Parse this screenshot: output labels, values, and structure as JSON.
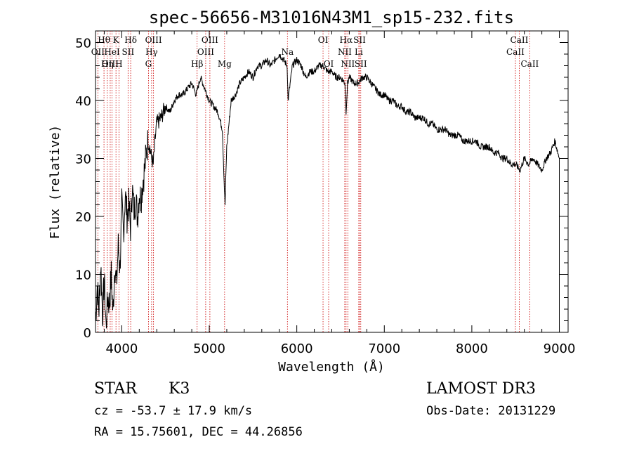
{
  "chart_data": {
    "type": "line",
    "title": "spec-56656-M31016N43M1_sp15-232.fits",
    "xlabel": "Wavelength (Å)",
    "ylabel": "Flux (relative)",
    "xlim": [
      3700,
      9100
    ],
    "ylim": [
      0,
      52
    ],
    "xticks": [
      4000,
      5000,
      6000,
      7000,
      8000,
      9000
    ],
    "yticks": [
      0,
      10,
      20,
      30,
      40,
      50
    ],
    "grid": false,
    "series": [
      {
        "x": [
          3700,
          3720,
          3740,
          3760,
          3780,
          3800,
          3820,
          3840,
          3860,
          3880,
          3900,
          3920,
          3940,
          3960,
          3980,
          4000,
          4020,
          4040,
          4060,
          4080,
          4100,
          4120,
          4140,
          4160,
          4180,
          4200,
          4220,
          4240,
          4260,
          4280,
          4300,
          4320,
          4340,
          4360,
          4380,
          4400,
          4450,
          4500,
          4550,
          4600,
          4650,
          4700,
          4750,
          4800,
          4850,
          4900,
          4950,
          5000,
          5050,
          5100,
          5150,
          5170,
          5180,
          5200,
          5250,
          5300,
          5350,
          5400,
          5450,
          5500,
          5550,
          5600,
          5650,
          5700,
          5750,
          5800,
          5850,
          5890,
          5900,
          5950,
          6000,
          6050,
          6100,
          6150,
          6200,
          6250,
          6300,
          6350,
          6400,
          6450,
          6500,
          6550,
          6563,
          6580,
          6600,
          6650,
          6700,
          6750,
          6800,
          6850,
          6900,
          6950,
          7000,
          7050,
          7100,
          7150,
          7200,
          7250,
          7300,
          7350,
          7400,
          7450,
          7500,
          7550,
          7600,
          7650,
          7700,
          7750,
          7800,
          7850,
          7900,
          7950,
          8000,
          8050,
          8100,
          8150,
          8200,
          8250,
          8300,
          8350,
          8400,
          8450,
          8500,
          8550,
          8600,
          8650,
          8700,
          8750,
          8800,
          8850,
          8900,
          8950,
          9000
        ],
        "y": [
          2,
          8,
          4,
          12,
          3,
          9,
          1,
          6,
          5,
          10,
          3,
          12,
          8,
          15,
          11,
          22,
          17,
          24,
          20,
          22,
          18,
          25,
          21,
          23,
          20,
          24,
          23,
          26,
          28,
          31,
          33,
          32,
          30,
          29,
          33,
          36,
          37,
          39,
          38,
          40,
          41,
          41,
          42,
          43,
          41,
          44,
          42,
          40,
          39,
          38,
          35,
          26,
          22,
          32,
          40,
          41,
          43,
          44,
          45,
          44,
          46,
          46,
          47,
          46,
          47,
          48,
          47,
          46,
          40,
          46,
          47,
          46,
          44,
          45,
          45,
          46,
          46,
          45,
          45,
          44,
          44,
          43,
          38,
          43,
          44,
          43,
          43,
          44,
          44,
          43,
          42,
          41,
          41,
          40,
          40,
          39,
          39,
          38,
          38,
          37,
          37,
          37,
          36,
          36,
          35,
          35,
          35,
          34,
          34,
          34,
          33,
          33,
          33,
          33,
          32,
          32,
          32,
          31,
          31,
          30,
          30,
          29,
          29,
          28,
          30,
          29,
          30,
          29,
          28,
          30,
          31,
          33,
          30
        ]
      }
    ],
    "spectral_lines": [
      {
        "name": "Hθ",
        "x": 3797,
        "row": 1
      },
      {
        "name": "OII",
        "x": 3727,
        "row": 2
      },
      {
        "name": "OIII",
        "x": 3868,
        "row": 3
      },
      {
        "name": "HeI",
        "x": 3889,
        "row": 2
      },
      {
        "name": "K",
        "x": 3934,
        "row": 1
      },
      {
        "name": "Hη",
        "x": 3835,
        "row": 3
      },
      {
        "name": "H",
        "x": 3968,
        "row": 3
      },
      {
        "name": "SII",
        "x": 4072,
        "row": 2
      },
      {
        "name": "Hδ",
        "x": 4102,
        "row": 1
      },
      {
        "name": "OIII",
        "x": 4363,
        "row": 1
      },
      {
        "name": "Hγ",
        "x": 4341,
        "row": 2
      },
      {
        "name": "G",
        "x": 4305,
        "row": 3
      },
      {
        "name": "OIII",
        "x": 5007,
        "row": 1
      },
      {
        "name": "OIII",
        "x": 4959,
        "row": 2
      },
      {
        "name": "Hβ",
        "x": 4861,
        "row": 3
      },
      {
        "name": "Mg",
        "x": 5175,
        "row": 3
      },
      {
        "name": "Na",
        "x": 5893,
        "row": 2
      },
      {
        "name": "OI",
        "x": 6300,
        "row": 1
      },
      {
        "name": "OI",
        "x": 6364,
        "row": 3
      },
      {
        "name": "Hα",
        "x": 6563,
        "row": 1
      },
      {
        "name": "SII",
        "x": 6717,
        "row": 1
      },
      {
        "name": "NII",
        "x": 6548,
        "row": 2
      },
      {
        "name": "Li",
        "x": 6708,
        "row": 2
      },
      {
        "name": "NII",
        "x": 6583,
        "row": 3
      },
      {
        "name": "SII",
        "x": 6731,
        "row": 3
      },
      {
        "name": "CaII",
        "x": 8542,
        "row": 1
      },
      {
        "name": "CaII",
        "x": 8498,
        "row": 2
      },
      {
        "name": "CaII",
        "x": 8662,
        "row": 3
      }
    ]
  },
  "info": {
    "object_class": "STAR",
    "subclass": "K3",
    "cz": "cz = -53.7 ± 17.9 km/s",
    "coords": "RA =  15.75601, DEC =  44.26856",
    "survey": "LAMOST DR3",
    "obs_date": "Obs-Date: 20131229"
  },
  "colors": {
    "line_markers": "#cc0000",
    "spectrum": "#000000"
  }
}
